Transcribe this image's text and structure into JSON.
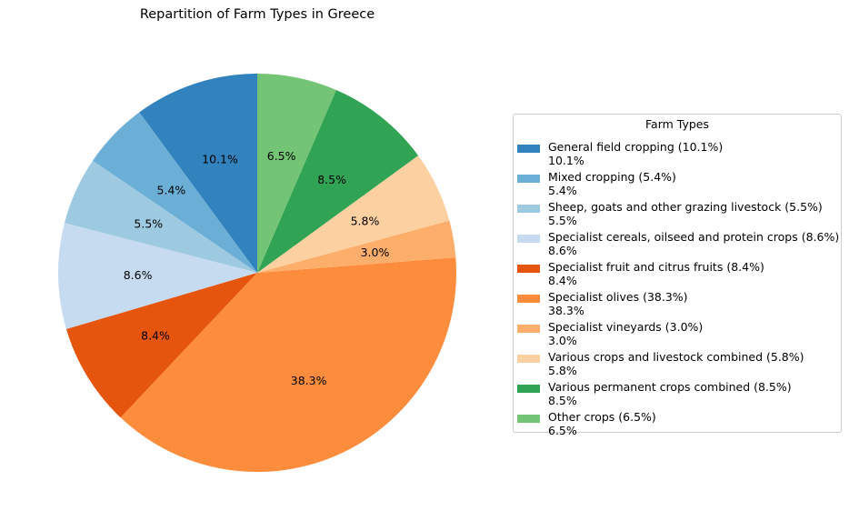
{
  "chart_data": {
    "type": "pie",
    "title": "Repartition of Farm Types in Greece",
    "legend_title": "Farm Types",
    "legend_position": "right",
    "start_angle_deg": 90,
    "direction": "counterclockwise",
    "slices": [
      {
        "legend_label": "General field cropping (10.1%)",
        "value_label": "10.1%",
        "value": 10.1,
        "color": "#3182bd"
      },
      {
        "legend_label": "Mixed cropping (5.4%)",
        "value_label": "5.4%",
        "value": 5.4,
        "color": "#6baed6"
      },
      {
        "legend_label": "Sheep, goats and other grazing livestock (5.5%)",
        "value_label": "5.5%",
        "value": 5.5,
        "color": "#9ecae1"
      },
      {
        "legend_label": "Specialist cereals, oilseed and protein crops (8.6%)",
        "value_label": "8.6%",
        "value": 8.6,
        "color": "#c6dbef"
      },
      {
        "legend_label": "Specialist fruit and citrus fruits (8.4%)",
        "value_label": "8.4%",
        "value": 8.4,
        "color": "#e6550d"
      },
      {
        "legend_label": "Specialist olives (38.3%)",
        "value_label": "38.3%",
        "value": 38.3,
        "color": "#fd8d3c"
      },
      {
        "legend_label": "Specialist vineyards (3.0%)",
        "value_label": "3.0%",
        "value": 3.0,
        "color": "#fdae6b"
      },
      {
        "legend_label": "Various crops and livestock combined (5.8%)",
        "value_label": "5.8%",
        "value": 5.8,
        "color": "#fdd0a2"
      },
      {
        "legend_label": "Various permanent crops combined (8.5%)",
        "value_label": "8.5%",
        "value": 8.5,
        "color": "#31a354"
      },
      {
        "legend_label": "Other crops (6.5%)",
        "value_label": "6.5%",
        "value": 6.5,
        "color": "#74c476"
      }
    ]
  }
}
